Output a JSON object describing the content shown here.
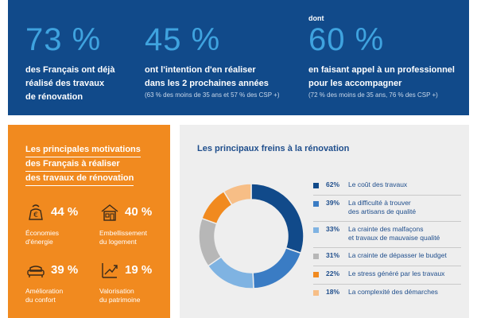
{
  "banner": {
    "stats": [
      {
        "prefix": "",
        "value": "73 %",
        "lines": [
          "des Français ont déjà",
          "réalisé des travaux",
          "de rénovation"
        ],
        "note": ""
      },
      {
        "prefix": "",
        "value": "45 %",
        "lines": [
          "ont l'intention d'en réaliser",
          "dans les 2 prochaines années"
        ],
        "note": "(63 % des moins de 35 ans et 57 % des CSP +)"
      },
      {
        "prefix": "dont",
        "value": "60 %",
        "lines": [
          "en faisant appel à un professionnel",
          "pour les accompagner"
        ],
        "note": "(72 % des moins de 35 ans, 76 % des CSP +)"
      }
    ]
  },
  "motivations": {
    "title_lines": [
      "Les principales motivations",
      "des Français à réaliser",
      "des travaux de rénovation"
    ],
    "items": [
      {
        "icon": "euro-savings-icon",
        "pct": "44 %",
        "lines": [
          "Économies",
          "d'énergie"
        ]
      },
      {
        "icon": "house-icon",
        "pct": "40 %",
        "lines": [
          "Embellissement",
          "du logement"
        ]
      },
      {
        "icon": "sofa-icon",
        "pct": "39 %",
        "lines": [
          "Amélioration",
          "du confort"
        ]
      },
      {
        "icon": "growth-arrow-icon",
        "pct": "19 %",
        "lines": [
          "Valorisation",
          "du patrimoine"
        ]
      }
    ]
  },
  "freins": {
    "title": "Les principaux freins à la rénovation",
    "items": [
      {
        "pct": "62%",
        "value": 62,
        "color": "#114a8a",
        "lines": [
          "Le coût des travaux"
        ]
      },
      {
        "pct": "39%",
        "value": 39,
        "color": "#3a7cc4",
        "lines": [
          "La difficulté à trouver",
          "des artisans de qualité"
        ]
      },
      {
        "pct": "33%",
        "value": 33,
        "color": "#7fb3e2",
        "lines": [
          "La crainte des malfaçons",
          "et travaux de mauvaise qualité"
        ]
      },
      {
        "pct": "31%",
        "value": 31,
        "color": "#b7b7b7",
        "lines": [
          "La crainte de dépasser le budget"
        ]
      },
      {
        "pct": "22%",
        "value": 22,
        "color": "#f18a1f",
        "lines": [
          "Le stress généré par les travaux"
        ]
      },
      {
        "pct": "18%",
        "value": 18,
        "color": "#f7be86",
        "lines": [
          "La complexité des démarches"
        ]
      }
    ]
  }
}
